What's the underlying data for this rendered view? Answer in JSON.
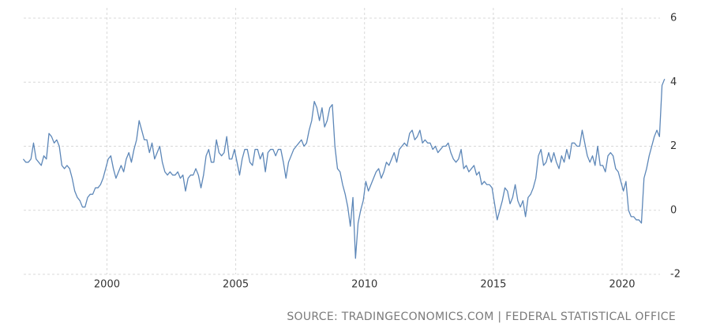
{
  "chart_data": {
    "type": "line",
    "source": "SOURCE: TRADINGECONOMICS.COM | FEDERAL STATISTICAL OFFICE",
    "x": [
      1996.75,
      1996.85,
      1996.95,
      1997.05,
      1997.15,
      1997.25,
      1997.35,
      1997.45,
      1997.55,
      1997.65,
      1997.75,
      1997.85,
      1997.95,
      1998.05,
      1998.15,
      1998.25,
      1998.35,
      1998.45,
      1998.55,
      1998.65,
      1998.75,
      1998.85,
      1998.95,
      1999.05,
      1999.15,
      1999.25,
      1999.35,
      1999.45,
      1999.55,
      1999.65,
      1999.75,
      1999.85,
      1999.95,
      2000.05,
      2000.15,
      2000.25,
      2000.35,
      2000.45,
      2000.55,
      2000.65,
      2000.75,
      2000.85,
      2000.95,
      2001.05,
      2001.15,
      2001.25,
      2001.35,
      2001.45,
      2001.55,
      2001.65,
      2001.75,
      2001.85,
      2001.95,
      2002.05,
      2002.15,
      2002.25,
      2002.35,
      2002.45,
      2002.55,
      2002.65,
      2002.75,
      2002.85,
      2002.95,
      2003.05,
      2003.15,
      2003.25,
      2003.35,
      2003.45,
      2003.55,
      2003.65,
      2003.75,
      2003.85,
      2003.95,
      2004.05,
      2004.15,
      2004.25,
      2004.35,
      2004.45,
      2004.55,
      2004.65,
      2004.75,
      2004.85,
      2004.95,
      2005.05,
      2005.15,
      2005.25,
      2005.35,
      2005.45,
      2005.55,
      2005.65,
      2005.75,
      2005.85,
      2005.95,
      2006.05,
      2006.15,
      2006.25,
      2006.35,
      2006.45,
      2006.55,
      2006.65,
      2006.75,
      2006.85,
      2006.95,
      2007.05,
      2007.15,
      2007.25,
      2007.35,
      2007.45,
      2007.55,
      2007.65,
      2007.75,
      2007.85,
      2007.95,
      2008.05,
      2008.15,
      2008.25,
      2008.35,
      2008.45,
      2008.55,
      2008.65,
      2008.75,
      2008.85,
      2008.95,
      2009.05,
      2009.15,
      2009.25,
      2009.35,
      2009.45,
      2009.55,
      2009.65,
      2009.75,
      2009.85,
      2009.95,
      2010.05,
      2010.15,
      2010.25,
      2010.35,
      2010.45,
      2010.55,
      2010.65,
      2010.75,
      2010.85,
      2010.95,
      2011.05,
      2011.15,
      2011.25,
      2011.35,
      2011.45,
      2011.55,
      2011.65,
      2011.75,
      2011.85,
      2011.95,
      2012.05,
      2012.15,
      2012.25,
      2012.35,
      2012.45,
      2012.55,
      2012.65,
      2012.75,
      2012.85,
      2012.95,
      2013.05,
      2013.15,
      2013.25,
      2013.35,
      2013.45,
      2013.55,
      2013.65,
      2013.75,
      2013.85,
      2013.95,
      2014.05,
      2014.15,
      2014.25,
      2014.35,
      2014.45,
      2014.55,
      2014.65,
      2014.75,
      2014.85,
      2014.95,
      2015.05,
      2015.15,
      2015.25,
      2015.35,
      2015.45,
      2015.55,
      2015.65,
      2015.75,
      2015.85,
      2015.95,
      2016.05,
      2016.15,
      2016.25,
      2016.35,
      2016.45,
      2016.55,
      2016.65,
      2016.75,
      2016.85,
      2016.95,
      2017.05,
      2017.15,
      2017.25,
      2017.35,
      2017.45,
      2017.55,
      2017.65,
      2017.75,
      2017.85,
      2017.95,
      2018.05,
      2018.15,
      2018.25,
      2018.35,
      2018.45,
      2018.55,
      2018.65,
      2018.75,
      2018.85,
      2018.95,
      2019.05,
      2019.15,
      2019.25,
      2019.35,
      2019.45,
      2019.55,
      2019.65,
      2019.75,
      2019.85,
      2019.95,
      2020.05,
      2020.15,
      2020.25,
      2020.35,
      2020.45,
      2020.55,
      2020.65,
      2020.75,
      2020.85,
      2020.95,
      2021.05,
      2021.15,
      2021.25,
      2021.35,
      2021.45,
      2021.55,
      2021.65
    ],
    "series": [
      {
        "color": "#5d87b8",
        "values": [
          1.6,
          1.5,
          1.5,
          1.6,
          2.1,
          1.6,
          1.5,
          1.4,
          1.7,
          1.6,
          2.4,
          2.3,
          2.1,
          2.2,
          2.0,
          1.4,
          1.3,
          1.4,
          1.3,
          1.0,
          0.6,
          0.4,
          0.3,
          0.1,
          0.1,
          0.4,
          0.5,
          0.5,
          0.7,
          0.7,
          0.8,
          1.0,
          1.3,
          1.6,
          1.7,
          1.3,
          1.0,
          1.2,
          1.4,
          1.2,
          1.6,
          1.8,
          1.5,
          1.9,
          2.2,
          2.8,
          2.5,
          2.2,
          2.2,
          1.8,
          2.1,
          1.6,
          1.8,
          2.0,
          1.5,
          1.2,
          1.1,
          1.2,
          1.1,
          1.1,
          1.2,
          1.0,
          1.1,
          0.6,
          1.0,
          1.1,
          1.1,
          1.3,
          1.1,
          0.7,
          1.1,
          1.7,
          1.9,
          1.5,
          1.5,
          2.2,
          1.8,
          1.7,
          1.8,
          2.3,
          1.6,
          1.6,
          1.9,
          1.5,
          1.1,
          1.6,
          1.9,
          1.9,
          1.5,
          1.4,
          1.9,
          1.9,
          1.6,
          1.8,
          1.2,
          1.8,
          1.9,
          1.9,
          1.7,
          1.9,
          1.9,
          1.5,
          1.0,
          1.5,
          1.7,
          1.9,
          2.0,
          2.1,
          2.2,
          2.0,
          2.1,
          2.5,
          2.8,
          3.4,
          3.2,
          2.8,
          3.2,
          2.6,
          2.8,
          3.2,
          3.3,
          2.0,
          1.3,
          1.2,
          0.8,
          0.5,
          0.1,
          -0.5,
          0.4,
          -1.5,
          -0.4,
          0.0,
          0.3,
          0.9,
          0.6,
          0.8,
          1.0,
          1.2,
          1.3,
          1.0,
          1.2,
          1.5,
          1.4,
          1.6,
          1.8,
          1.5,
          1.9,
          2.0,
          2.1,
          2.0,
          2.4,
          2.5,
          2.2,
          2.3,
          2.5,
          2.1,
          2.2,
          2.1,
          2.1,
          1.9,
          2.0,
          1.8,
          1.9,
          2.0,
          2.0,
          2.1,
          1.8,
          1.6,
          1.5,
          1.6,
          1.9,
          1.3,
          1.4,
          1.2,
          1.3,
          1.4,
          1.1,
          1.2,
          0.8,
          0.9,
          0.8,
          0.8,
          0.7,
          0.2,
          -0.3,
          0.0,
          0.3,
          0.7,
          0.6,
          0.2,
          0.4,
          0.8,
          0.3,
          0.1,
          0.3,
          -0.2,
          0.4,
          0.5,
          0.7,
          1.0,
          1.7,
          1.9,
          1.4,
          1.5,
          1.8,
          1.5,
          1.8,
          1.5,
          1.3,
          1.7,
          1.5,
          1.9,
          1.6,
          2.1,
          2.1,
          2.0,
          2.0,
          2.5,
          2.1,
          1.7,
          1.5,
          1.7,
          1.4,
          2.0,
          1.4,
          1.4,
          1.2,
          1.7,
          1.8,
          1.7,
          1.3,
          1.2,
          0.9,
          0.6,
          0.9,
          0.0,
          -0.2,
          -0.2,
          -0.3,
          -0.3,
          -0.4,
          1.0,
          1.3,
          1.7,
          2.0,
          2.3,
          2.5,
          2.3,
          3.9,
          4.1
        ]
      }
    ],
    "xlim": [
      1996.4,
      2021.9
    ],
    "xticks": [
      2000,
      2005,
      2010,
      2015,
      2020
    ],
    "ylim": [
      -2,
      6
    ],
    "yticks": [
      -2,
      0,
      2,
      4,
      6
    ],
    "grid": true
  }
}
